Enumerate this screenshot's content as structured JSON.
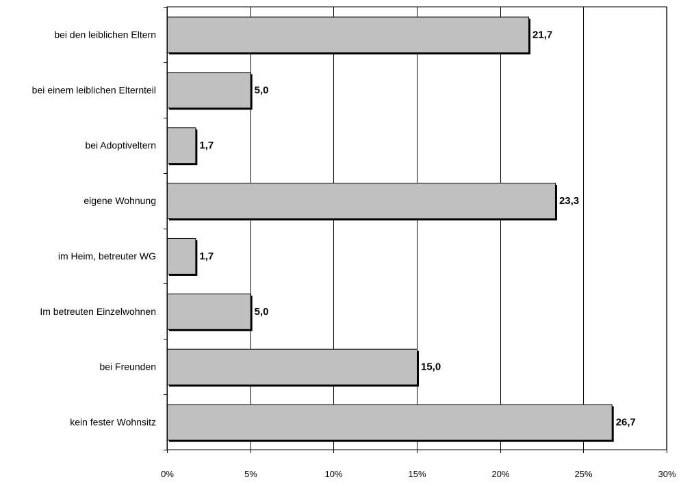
{
  "chart_data": {
    "type": "bar",
    "orientation": "horizontal",
    "title": "",
    "xlabel": "",
    "ylabel": "",
    "categories": [
      "bei den leiblichen Eltern",
      "bei einem leiblichen Elternteil",
      "bei Adoptiveltern",
      "eigene Wohnung",
      "im Heim, betreuter WG",
      "Im betreuten Einzelwohnen",
      "bei Freunden",
      "kein fester Wohnsitz"
    ],
    "values": [
      21.7,
      5.0,
      1.7,
      23.3,
      1.7,
      5.0,
      15.0,
      26.7
    ],
    "value_labels": [
      "21,7",
      "5,0",
      "1,7",
      "23,3",
      "1,7",
      "5,0",
      "15,0",
      "26,7"
    ],
    "xlim": [
      0,
      30
    ],
    "x_ticks": [
      0,
      5,
      10,
      15,
      20,
      25,
      30
    ],
    "x_tick_labels": [
      "0%",
      "5%",
      "10%",
      "15%",
      "20%",
      "25%",
      "30%"
    ],
    "grid": "vertical",
    "legend": "none",
    "colors": {
      "bar_fill": "#c0c0c0",
      "bar_border": "#000000",
      "bar_shadow": "#000000",
      "gridline": "#000000",
      "background": "#ffffff"
    }
  }
}
